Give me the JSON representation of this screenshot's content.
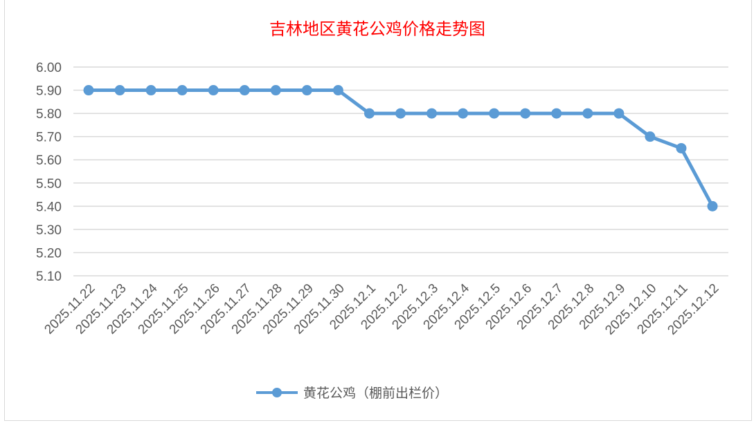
{
  "chart_data": {
    "type": "line",
    "title": "吉林地区黄花公鸡价格走势图",
    "xlabel": "",
    "ylabel": "",
    "categories": [
      "2025.11.22",
      "2025.11.23",
      "2025.11.24",
      "2025.11.25",
      "2025.11.26",
      "2025.11.27",
      "2025.11.28",
      "2025.11.29",
      "2025.11.30",
      "2025.12.1",
      "2025.12.2",
      "2025.12.3",
      "2025.12.4",
      "2025.12.5",
      "2025.12.6",
      "2025.12.7",
      "2025.12.8",
      "2025.12.9",
      "2025.12.10",
      "2025.12.11",
      "2025.12.12"
    ],
    "series": [
      {
        "name": "黄花公鸡（棚前出栏价）",
        "color": "#5b9bd5",
        "values": [
          5.9,
          5.9,
          5.9,
          5.9,
          5.9,
          5.9,
          5.9,
          5.9,
          5.9,
          5.8,
          5.8,
          5.8,
          5.8,
          5.8,
          5.8,
          5.8,
          5.8,
          5.8,
          5.7,
          5.65,
          5.4
        ]
      }
    ],
    "ylim": [
      5.1,
      6.0
    ],
    "yticks": [
      "6.00",
      "5.90",
      "5.80",
      "5.70",
      "5.60",
      "5.50",
      "5.40",
      "5.30",
      "5.20",
      "5.10"
    ],
    "grid": true,
    "legend": "bottom"
  }
}
